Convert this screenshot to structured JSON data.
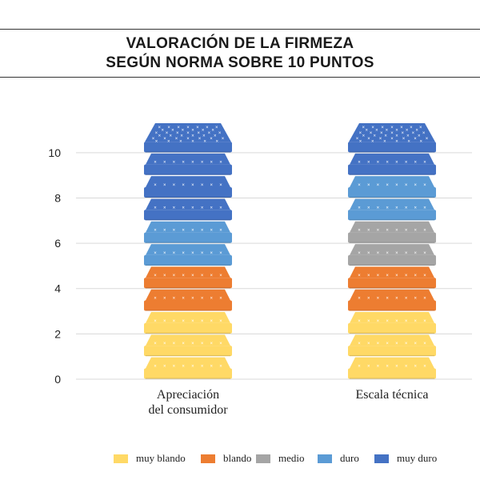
{
  "chart_title": {
    "line1": "VALORACIÓN DE LA FIRMEZA",
    "line2": "SEGÚN NORMA SOBRE 10 PUNTOS"
  },
  "chart_data": {
    "type": "bar",
    "title": "VALORACIÓN DE LA FIRMEZA SEGÚN NORMA SOBRE 10 PUNTOS",
    "categories": [
      "Apreciación\ndel consumidor",
      "Escala técnica"
    ],
    "y_ticks": [
      0,
      2,
      4,
      6,
      8,
      10
    ],
    "ylim": [
      0,
      11.3
    ],
    "xlabel": "",
    "ylabel": "",
    "grid": true,
    "legend_position": "bottom",
    "series": [
      {
        "name": "muy blando",
        "color": "#FFD966",
        "values": [
          3,
          3
        ]
      },
      {
        "name": "blando",
        "color": "#ED7D31",
        "values": [
          2,
          2
        ]
      },
      {
        "name": "medio",
        "color": "#A5A5A5",
        "values": [
          0,
          2
        ]
      },
      {
        "name": "duro",
        "color": "#5B9BD5",
        "values": [
          2,
          2
        ]
      },
      {
        "name": "muy duro",
        "color": "#4472C4",
        "values": [
          4,
          2
        ]
      }
    ]
  }
}
